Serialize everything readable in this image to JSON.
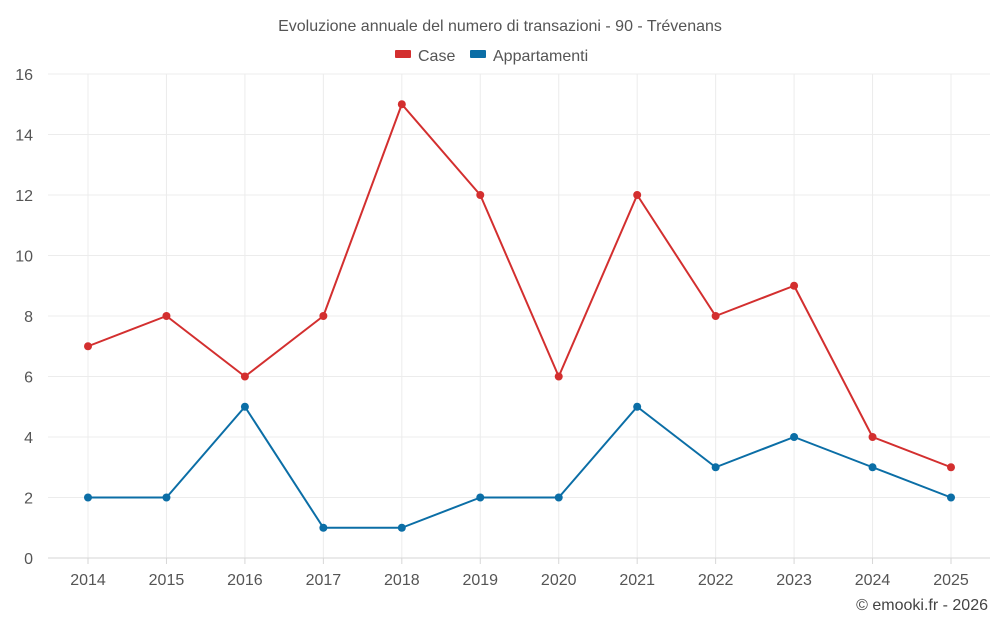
{
  "chart_data": {
    "type": "line",
    "title": "Evoluzione annuale del numero di transazioni - 90 - Trévenans",
    "categories": [
      "2014",
      "2015",
      "2016",
      "2017",
      "2018",
      "2019",
      "2020",
      "2021",
      "2022",
      "2023",
      "2024",
      "2025"
    ],
    "series": [
      {
        "name": "Case",
        "color": "#d32f2f",
        "values": [
          7,
          8,
          6,
          8,
          15,
          12,
          6,
          12,
          8,
          9,
          4,
          3
        ]
      },
      {
        "name": "Appartamenti",
        "color": "#0b6ea6",
        "values": [
          2,
          2,
          5,
          1,
          1,
          2,
          2,
          5,
          3,
          4,
          3,
          2
        ]
      }
    ],
    "ylim": [
      0,
      16
    ],
    "yticks": [
      "0",
      "2",
      "4",
      "6",
      "8",
      "10",
      "12",
      "14",
      "16"
    ],
    "legend_position": "top-center",
    "grid": true
  },
  "credit": "© emooki.fr - 2026"
}
